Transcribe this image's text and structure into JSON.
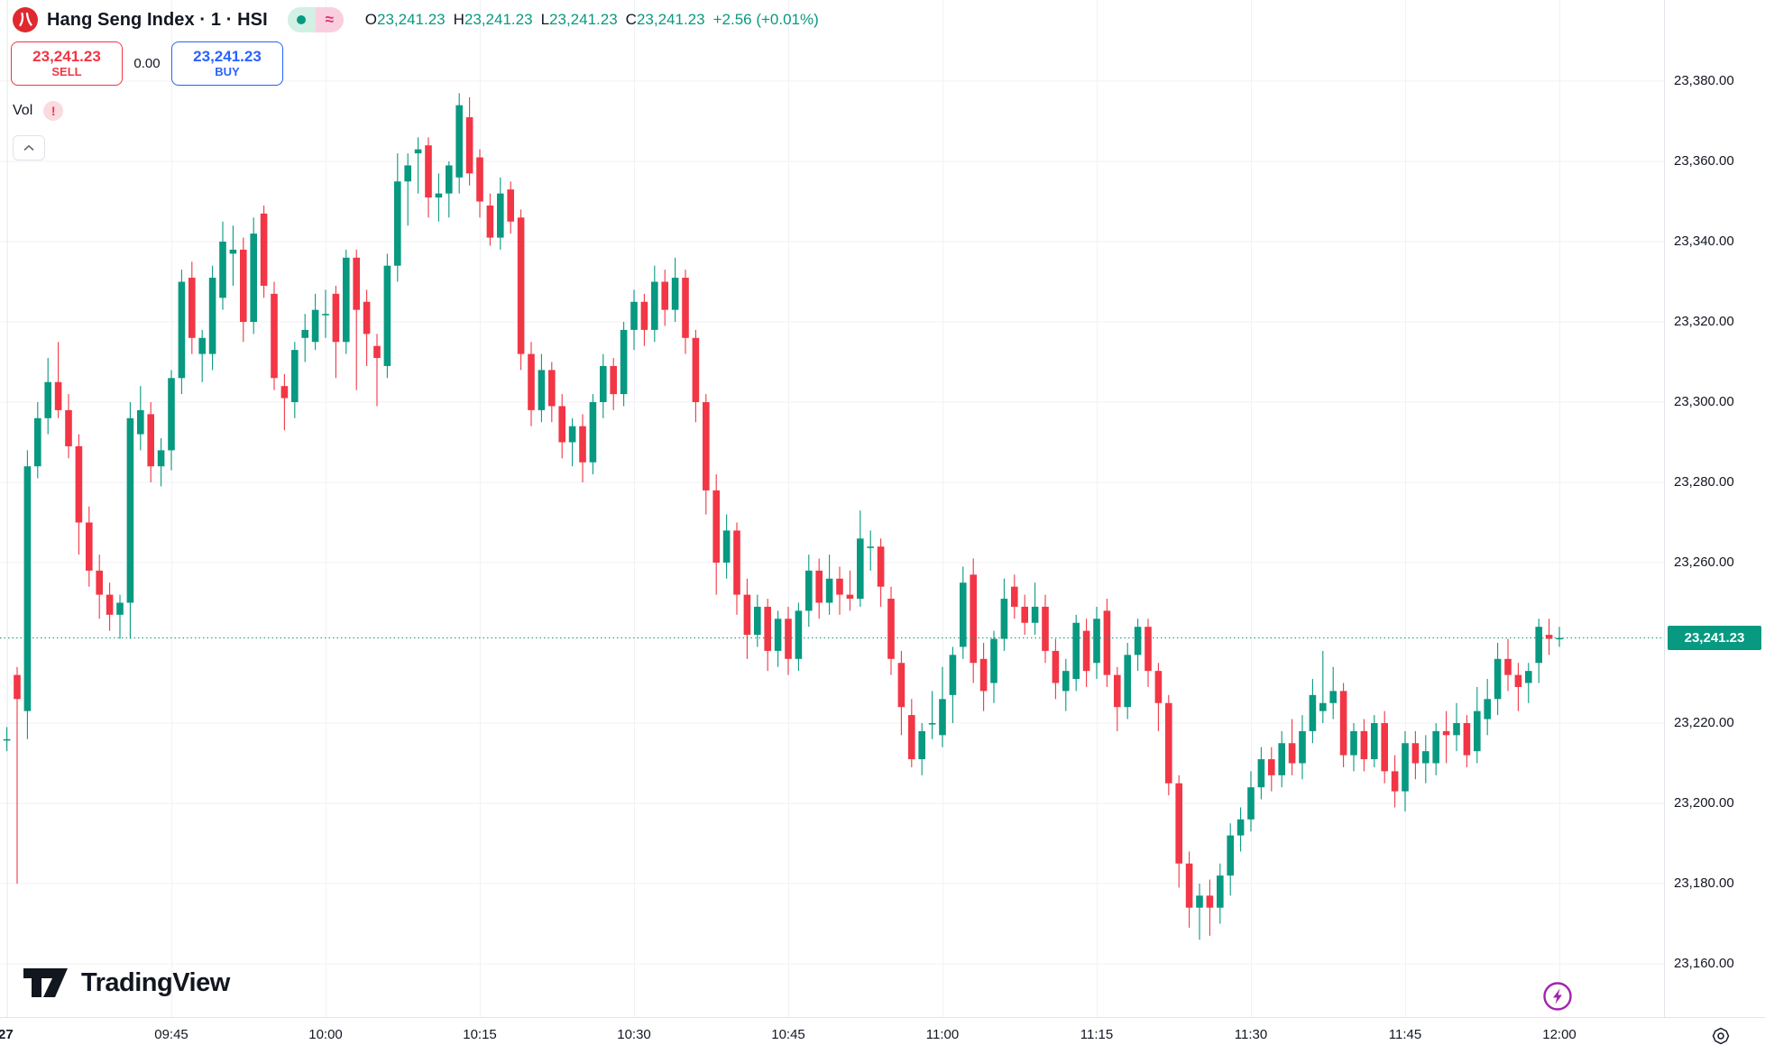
{
  "header": {
    "symbol_title": "Hang Seng Index · 1 · HSI",
    "ohlc": {
      "open_label": "O",
      "open": "23,241.23",
      "high_label": "H",
      "high": "23,241.23",
      "low_label": "L",
      "low": "23,241.23",
      "close_label": "C",
      "close": "23,241.23",
      "change": "+2.56 (+0.01%)"
    },
    "sell_button": {
      "price": "23,241.23",
      "label": "SELL"
    },
    "spread": "0.00",
    "buy_button": {
      "price": "23,241.23",
      "label": "BUY"
    },
    "vol_label": "Vol",
    "vol_warning": "!"
  },
  "watermark": {
    "brand": "TradingView"
  },
  "colors": {
    "up": "#089981",
    "down": "#f23645",
    "buy_blue": "#2962ff",
    "sell_red": "#f23645",
    "text_dark": "#131722",
    "grid": "#f0f2f5",
    "axis_border": "#e0e3eb",
    "badge_bg": "#089981",
    "lightning_purple": "#a224ad",
    "logo_red": "#e0282e"
  },
  "price_axis": {
    "ticks": [
      {
        "label": "23,380.00",
        "value": 23380
      },
      {
        "label": "23,360.00",
        "value": 23360
      },
      {
        "label": "23,340.00",
        "value": 23340
      },
      {
        "label": "23,320.00",
        "value": 23320
      },
      {
        "label": "23,300.00",
        "value": 23300
      },
      {
        "label": "23,280.00",
        "value": 23280
      },
      {
        "label": "23,260.00",
        "value": 23260
      },
      {
        "label": "23,220.00",
        "value": 23220
      },
      {
        "label": "23,200.00",
        "value": 23200
      },
      {
        "label": "23,180.00",
        "value": 23180
      },
      {
        "label": "23,160.00",
        "value": 23160
      }
    ],
    "current_price_label": "23,241.23"
  },
  "time_axis": {
    "ticks": [
      {
        "label": "27",
        "candle_index": 0,
        "session_start": true
      },
      {
        "label": "09:45",
        "candle_index": 16
      },
      {
        "label": "10:00",
        "candle_index": 31
      },
      {
        "label": "10:15",
        "candle_index": 46
      },
      {
        "label": "10:30",
        "candle_index": 61
      },
      {
        "label": "10:45",
        "candle_index": 76
      },
      {
        "label": "11:00",
        "candle_index": 91
      },
      {
        "label": "11:15",
        "candle_index": 106
      },
      {
        "label": "11:30",
        "candle_index": 121
      },
      {
        "label": "11:45",
        "candle_index": 136
      },
      {
        "label": "12:00",
        "candle_index": 151
      }
    ]
  },
  "chart_data": {
    "type": "candlestick",
    "symbol": "HSI",
    "interval": "1 minute",
    "start_time": "09:29",
    "title": "Hang Seng Index · 1 · HSI",
    "ylim": [
      23150,
      23395
    ],
    "grid": true,
    "current_price": 23241.23,
    "change": 2.56,
    "change_pct": 0.01,
    "candles_ohlc": [
      [
        23216,
        23219,
        23213,
        23216
      ],
      [
        23232,
        23234,
        23180,
        23226
      ],
      [
        23223,
        23288,
        23216,
        23284
      ],
      [
        23284,
        23300,
        23281,
        23296
      ],
      [
        23296,
        23311,
        23292,
        23305
      ],
      [
        23305,
        23315,
        23296,
        23298
      ],
      [
        23298,
        23302,
        23286,
        23289
      ],
      [
        23289,
        23292,
        23262,
        23270
      ],
      [
        23270,
        23274,
        23254,
        23258
      ],
      [
        23258,
        23262,
        23246,
        23252
      ],
      [
        23252,
        23255,
        23243,
        23247
      ],
      [
        23247,
        23252,
        23241,
        23250
      ],
      [
        23250,
        23300,
        23241,
        23296
      ],
      [
        23292,
        23304,
        23288,
        23298
      ],
      [
        23297,
        23300,
        23280,
        23284
      ],
      [
        23284,
        23291,
        23279,
        23288
      ],
      [
        23288,
        23308,
        23283,
        23306
      ],
      [
        23306,
        23333,
        23302,
        23330
      ],
      [
        23331,
        23335,
        23312,
        23316
      ],
      [
        23312,
        23318,
        23305,
        23316
      ],
      [
        23312,
        23334,
        23308,
        23331
      ],
      [
        23326,
        23345,
        23323,
        23340
      ],
      [
        23337,
        23344,
        23329,
        23338
      ],
      [
        23338,
        23341,
        23315,
        23320
      ],
      [
        23320,
        23346,
        23317,
        23342
      ],
      [
        23347,
        23349,
        23326,
        23329
      ],
      [
        23327,
        23330,
        23303,
        23306
      ],
      [
        23304,
        23307,
        23293,
        23301
      ],
      [
        23300,
        23315,
        23296,
        23313
      ],
      [
        23316,
        23322,
        23310,
        23318
      ],
      [
        23315,
        23327,
        23313,
        23323
      ],
      [
        23322,
        23328,
        23316,
        23322
      ],
      [
        23327,
        23329,
        23306,
        23315
      ],
      [
        23315,
        23338,
        23312,
        23336
      ],
      [
        23336,
        23338,
        23303,
        23323
      ],
      [
        23325,
        23328,
        23309,
        23317
      ],
      [
        23314,
        23317,
        23299,
        23311
      ],
      [
        23309,
        23337,
        23306,
        23334
      ],
      [
        23334,
        23362,
        23330,
        23355
      ],
      [
        23355,
        23362,
        23344,
        23359
      ],
      [
        23362,
        23366,
        23352,
        23363
      ],
      [
        23364,
        23366,
        23346,
        23351
      ],
      [
        23351,
        23357,
        23345,
        23352
      ],
      [
        23352,
        23360,
        23346,
        23359
      ],
      [
        23356,
        23377,
        23352,
        23374
      ],
      [
        23371,
        23376,
        23354,
        23357
      ],
      [
        23361,
        23363,
        23346,
        23350
      ],
      [
        23349,
        23352,
        23339,
        23341
      ],
      [
        23341,
        23356,
        23338,
        23352
      ],
      [
        23353,
        23355,
        23342,
        23345
      ],
      [
        23346,
        23348,
        23308,
        23312
      ],
      [
        23312,
        23315,
        23294,
        23298
      ],
      [
        23298,
        23312,
        23295,
        23308
      ],
      [
        23308,
        23310,
        23295,
        23299
      ],
      [
        23299,
        23302,
        23286,
        23290
      ],
      [
        23290,
        23296,
        23284,
        23294
      ],
      [
        23294,
        23297,
        23280,
        23285
      ],
      [
        23285,
        23302,
        23282,
        23300
      ],
      [
        23300,
        23312,
        23296,
        23309
      ],
      [
        23309,
        23311,
        23298,
        23302
      ],
      [
        23302,
        23320,
        23299,
        23318
      ],
      [
        23318,
        23328,
        23313,
        23325
      ],
      [
        23325,
        23327,
        23314,
        23318
      ],
      [
        23318,
        23334,
        23315,
        23330
      ],
      [
        23330,
        23333,
        23319,
        23323
      ],
      [
        23323,
        23336,
        23320,
        23331
      ],
      [
        23331,
        23333,
        23312,
        23316
      ],
      [
        23316,
        23318,
        23295,
        23300
      ],
      [
        23300,
        23302,
        23272,
        23278
      ],
      [
        23278,
        23282,
        23252,
        23260
      ],
      [
        23260,
        23272,
        23256,
        23268
      ],
      [
        23268,
        23270,
        23247,
        23252
      ],
      [
        23252,
        23256,
        23236,
        23242
      ],
      [
        23242,
        23252,
        23239,
        23249
      ],
      [
        23249,
        23251,
        23233,
        23238
      ],
      [
        23238,
        23248,
        23234,
        23246
      ],
      [
        23246,
        23249,
        23232,
        23236
      ],
      [
        23236,
        23250,
        23233,
        23248
      ],
      [
        23248,
        23262,
        23244,
        23258
      ],
      [
        23258,
        23261,
        23246,
        23250
      ],
      [
        23250,
        23262,
        23247,
        23256
      ],
      [
        23256,
        23259,
        23247,
        23252
      ],
      [
        23252,
        23258,
        23248,
        23251
      ],
      [
        23251,
        23273,
        23249,
        23266
      ],
      [
        23264,
        23268,
        23258,
        23264
      ],
      [
        23264,
        23266,
        23249,
        23254
      ],
      [
        23251,
        23254,
        23232,
        23236
      ],
      [
        23235,
        23238,
        23217,
        23224
      ],
      [
        23222,
        23226,
        23209,
        23211
      ],
      [
        23211,
        23220,
        23207,
        23218
      ],
      [
        23220,
        23228,
        23216,
        23220
      ],
      [
        23217,
        23234,
        23214,
        23226
      ],
      [
        23227,
        23239,
        23220,
        23237
      ],
      [
        23239,
        23259,
        23236,
        23255
      ],
      [
        23257,
        23261,
        23230,
        23235
      ],
      [
        23236,
        23240,
        23223,
        23228
      ],
      [
        23230,
        23243,
        23225,
        23241
      ],
      [
        23241,
        23256,
        23238,
        23251
      ],
      [
        23254,
        23257,
        23246,
        23249
      ],
      [
        23249,
        23252,
        23242,
        23245
      ],
      [
        23245,
        23255,
        23242,
        23249
      ],
      [
        23249,
        23252,
        23235,
        23238
      ],
      [
        23238,
        23241,
        23226,
        23230
      ],
      [
        23228,
        23236,
        23223,
        23233
      ],
      [
        23231,
        23247,
        23228,
        23245
      ],
      [
        23243,
        23246,
        23229,
        23233
      ],
      [
        23235,
        23249,
        23231,
        23246
      ],
      [
        23248,
        23251,
        23229,
        23232
      ],
      [
        23232,
        23234,
        23218,
        23224
      ],
      [
        23224,
        23240,
        23221,
        23237
      ],
      [
        23237,
        23246,
        23233,
        23244
      ],
      [
        23244,
        23246,
        23229,
        23233
      ],
      [
        23233,
        23235,
        23218,
        23225
      ],
      [
        23225,
        23227,
        23202,
        23205
      ],
      [
        23205,
        23207,
        23179,
        23185
      ],
      [
        23185,
        23188,
        23169,
        23174
      ],
      [
        23174,
        23180,
        23166,
        23177
      ],
      [
        23177,
        23181,
        23167,
        23174
      ],
      [
        23174,
        23185,
        23170,
        23182
      ],
      [
        23182,
        23195,
        23177,
        23192
      ],
      [
        23192,
        23199,
        23188,
        23196
      ],
      [
        23196,
        23208,
        23193,
        23204
      ],
      [
        23204,
        23214,
        23201,
        23211
      ],
      [
        23211,
        23214,
        23203,
        23207
      ],
      [
        23207,
        23218,
        23204,
        23215
      ],
      [
        23215,
        23221,
        23207,
        23210
      ],
      [
        23210,
        23222,
        23206,
        23218
      ],
      [
        23218,
        23231,
        23215,
        23227
      ],
      [
        23223,
        23238,
        23220,
        23225
      ],
      [
        23225,
        23234,
        23221,
        23228
      ],
      [
        23228,
        23230,
        23209,
        23212
      ],
      [
        23212,
        23220,
        23208,
        23218
      ],
      [
        23218,
        23221,
        23208,
        23211
      ],
      [
        23211,
        23222,
        23209,
        23220
      ],
      [
        23220,
        23223,
        23205,
        23208
      ],
      [
        23208,
        23212,
        23199,
        23203
      ],
      [
        23203,
        23218,
        23198,
        23215
      ],
      [
        23215,
        23218,
        23206,
        23210
      ],
      [
        23210,
        23217,
        23205,
        23213
      ],
      [
        23210,
        23220,
        23207,
        23218
      ],
      [
        23218,
        23223,
        23210,
        23217
      ],
      [
        23217,
        23225,
        23213,
        23220
      ],
      [
        23220,
        23222,
        23209,
        23212
      ],
      [
        23213,
        23229,
        23210,
        23223
      ],
      [
        23221,
        23231,
        23217,
        23226
      ],
      [
        23226,
        23240,
        23222,
        23236
      ],
      [
        23236,
        23241,
        23228,
        23232
      ],
      [
        23232,
        23235,
        23223,
        23229
      ],
      [
        23230,
        23235,
        23225,
        23233
      ],
      [
        23235,
        23246,
        23230,
        23244
      ],
      [
        23242,
        23246,
        23237,
        23241
      ],
      [
        23241,
        23244,
        23239,
        23241.23
      ]
    ]
  }
}
